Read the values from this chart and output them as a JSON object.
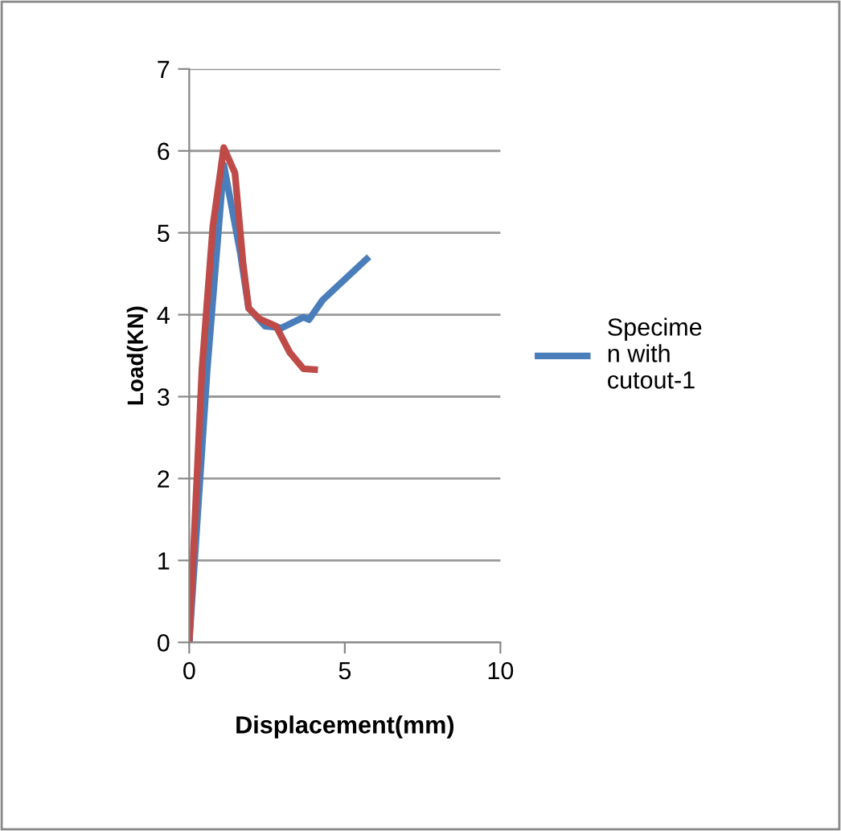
{
  "chart_data": {
    "type": "line",
    "xlabel": "Displacement(mm)",
    "ylabel": "Load(KN)",
    "xlim": [
      0,
      10
    ],
    "xticks": [
      0,
      5,
      10
    ],
    "ylim": [
      0,
      7
    ],
    "yticks": [
      0,
      1,
      2,
      3,
      4,
      5,
      6,
      7
    ],
    "grid": "y",
    "legend": "right",
    "marker": "none",
    "line_style": "solid",
    "series": [
      {
        "name": "Specime\nn with\ncutout-1",
        "color": "#4a7ebb",
        "x": [
          0,
          0.58,
          1.11,
          1.64,
          1.91,
          2.44,
          2.97,
          3.67,
          3.85,
          4.29,
          5.7
        ],
        "values": [
          0,
          3.34,
          5.83,
          4.76,
          4.08,
          3.86,
          3.84,
          3.97,
          3.94,
          4.18,
          4.68
        ]
      },
      {
        "color": "#be4b48",
        "x": [
          0,
          0.41,
          0.76,
          1.11,
          1.47,
          1.73,
          1.91,
          2.26,
          2.79,
          3.23,
          3.67,
          4.03
        ],
        "values": [
          0,
          3.34,
          5.08,
          6.04,
          5.73,
          4.63,
          4.08,
          3.95,
          3.86,
          3.54,
          3.34,
          3.33
        ]
      }
    ]
  }
}
